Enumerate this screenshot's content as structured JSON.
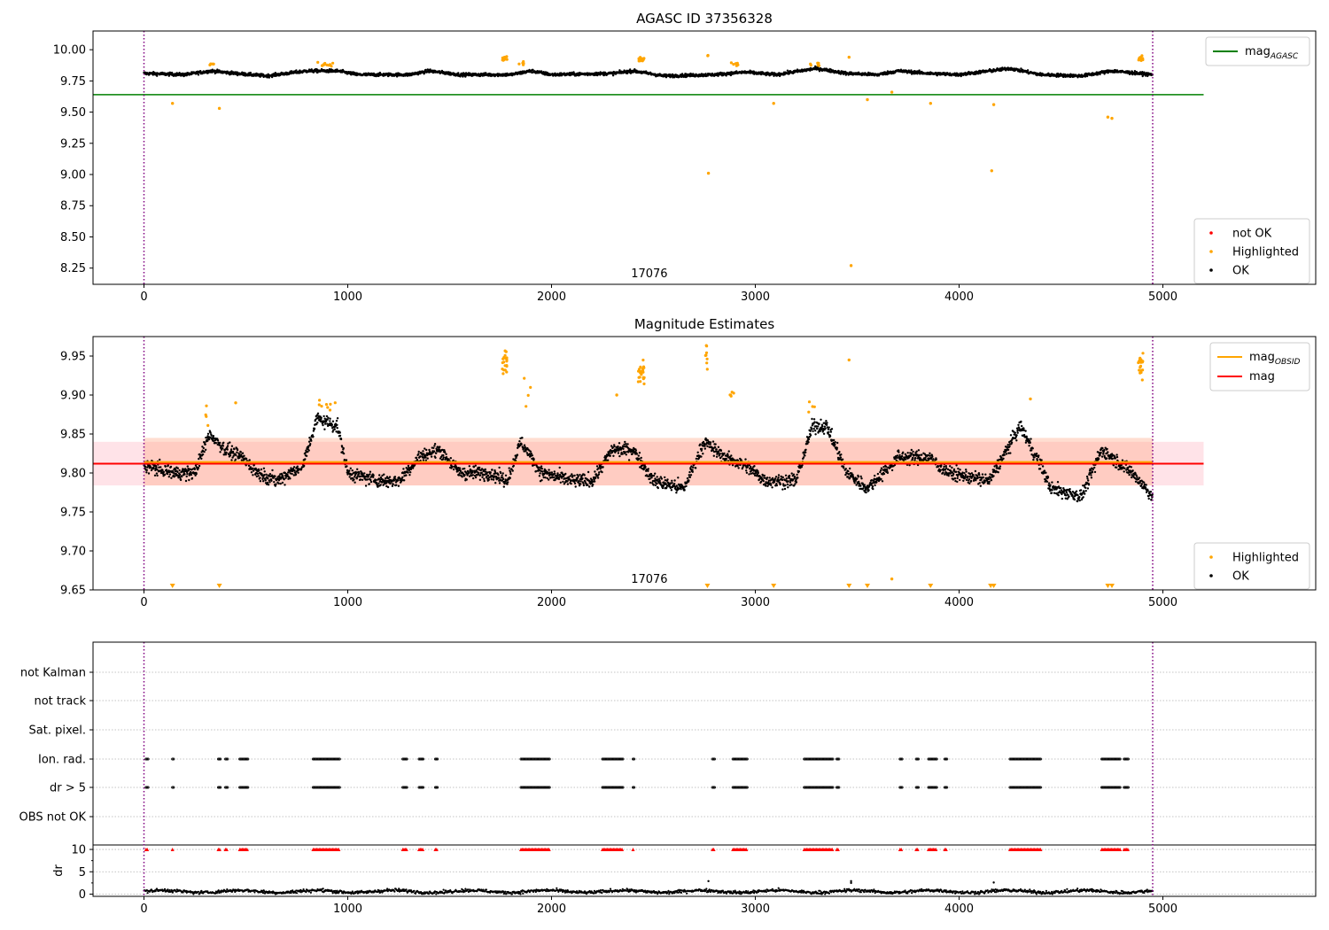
{
  "colors": {
    "ok": "#000000",
    "highlighted": "#ffa500",
    "not_ok": "#ff0000",
    "mag_agasc": "#008000",
    "mag": "#ff0000",
    "mag_obsid": "#ffa500",
    "vline": "#800080",
    "band_outer": "#ffc0cb",
    "band_inner": "#ffa07a"
  },
  "chart_data": [
    {
      "type": "scatter",
      "title": "AGASC ID 37356328",
      "xlim": [
        -250,
        5750
      ],
      "ylim": [
        8.12,
        10.15
      ],
      "x_ticks": [
        0,
        1000,
        2000,
        3000,
        4000,
        5000
      ],
      "y_ticks": [
        8.25,
        8.5,
        8.75,
        9.0,
        9.25,
        9.5,
        9.75,
        10.0
      ],
      "y_tick_labels": [
        "8.25",
        "8.50",
        "8.75",
        "9.00",
        "9.25",
        "9.50",
        "9.75",
        "10.00"
      ],
      "obsid_label": "17076",
      "obsid_label_x": 2480,
      "vlines": [
        0,
        4950
      ],
      "hlines": [
        {
          "name": "mag_AGASC",
          "y": 9.64,
          "x0": -250,
          "x1": 5200
        }
      ],
      "line_legend": [
        {
          "label": "mag",
          "sub": "AGASC",
          "color": "mag_agasc"
        }
      ],
      "point_legend": [
        {
          "label": "not OK",
          "color": "not_ok"
        },
        {
          "label": "Highlighted",
          "color": "highlighted"
        },
        {
          "label": "OK",
          "color": "ok"
        }
      ],
      "trend": {
        "x_start": 0,
        "x_end": 4950,
        "knots": [
          [
            0,
            9.81
          ],
          [
            200,
            9.8
          ],
          [
            330,
            9.83
          ],
          [
            450,
            9.81
          ],
          [
            600,
            9.79
          ],
          [
            800,
            9.83
          ],
          [
            950,
            9.83
          ],
          [
            1050,
            9.8
          ],
          [
            1300,
            9.8
          ],
          [
            1400,
            9.83
          ],
          [
            1550,
            9.8
          ],
          [
            1800,
            9.8
          ],
          [
            1900,
            9.83
          ],
          [
            2000,
            9.8
          ],
          [
            2300,
            9.81
          ],
          [
            2400,
            9.83
          ],
          [
            2550,
            9.79
          ],
          [
            2800,
            9.8
          ],
          [
            2950,
            9.82
          ],
          [
            3100,
            9.8
          ],
          [
            3300,
            9.85
          ],
          [
            3450,
            9.81
          ],
          [
            3600,
            9.8
          ],
          [
            3700,
            9.83
          ],
          [
            3850,
            9.81
          ],
          [
            4000,
            9.8
          ],
          [
            4250,
            9.85
          ],
          [
            4400,
            9.8
          ],
          [
            4600,
            9.79
          ],
          [
            4750,
            9.83
          ],
          [
            4950,
            9.8
          ]
        ],
        "jitter": 0.018
      },
      "highlighted_clusters": [
        [
          1770,
          9.93,
          12,
          15
        ],
        [
          2440,
          9.92,
          15,
          18
        ],
        [
          4890,
          9.93,
          12,
          15
        ],
        [
          2765,
          9.95,
          4,
          3
        ],
        [
          2900,
          9.89,
          20,
          6
        ],
        [
          330,
          9.88,
          15,
          5
        ],
        [
          890,
          9.88,
          40,
          12
        ],
        [
          1850,
          9.89,
          20,
          5
        ],
        [
          3300,
          9.88,
          30,
          6
        ]
      ],
      "highlighted_points": [
        [
          140,
          9.57
        ],
        [
          370,
          9.53
        ],
        [
          2770,
          9.01
        ],
        [
          3090,
          9.57
        ],
        [
          3470,
          8.27
        ],
        [
          3550,
          9.6
        ],
        [
          3670,
          9.66
        ],
        [
          3860,
          9.57
        ],
        [
          4160,
          9.03
        ],
        [
          4170,
          9.56
        ],
        [
          4730,
          9.46
        ],
        [
          4750,
          9.45
        ],
        [
          3460,
          9.94
        ]
      ],
      "not_ok_points": []
    },
    {
      "type": "scatter",
      "title": "Magnitude Estimates",
      "xlim": [
        -250,
        5750
      ],
      "ylim": [
        9.65,
        9.975
      ],
      "x_ticks": [
        0,
        1000,
        2000,
        3000,
        4000,
        5000
      ],
      "y_ticks": [
        9.65,
        9.7,
        9.75,
        9.8,
        9.85,
        9.9,
        9.95
      ],
      "y_tick_labels": [
        "9.65",
        "9.70",
        "9.75",
        "9.80",
        "9.85",
        "9.90",
        "9.95"
      ],
      "obsid_label": "17076",
      "obsid_label_x": 2480,
      "vlines": [
        0,
        4950
      ],
      "mag_line": {
        "y": 9.812,
        "x0": -250,
        "x1": 5200
      },
      "mag_obsid_line": {
        "y": 9.814,
        "x0": 0,
        "x1": 4950
      },
      "band_outer": {
        "y0": 9.784,
        "y1": 9.84,
        "x0": -250,
        "x1": 5200
      },
      "band_inner": {
        "y0": 9.784,
        "y1": 9.845,
        "x0": 0,
        "x1": 4950
      },
      "line_legend": [
        {
          "label": "mag",
          "sub": "OBSID",
          "color": "mag_obsid"
        },
        {
          "label": "mag",
          "sub": "",
          "color": "mag"
        }
      ],
      "point_legend": [
        {
          "label": "Highlighted",
          "color": "highlighted"
        },
        {
          "label": "OK",
          "color": "ok"
        }
      ],
      "trend": {
        "x_start": 0,
        "x_end": 4950,
        "knots": [
          [
            0,
            9.81
          ],
          [
            150,
            9.8
          ],
          [
            250,
            9.8
          ],
          [
            320,
            9.85
          ],
          [
            400,
            9.83
          ],
          [
            480,
            9.82
          ],
          [
            560,
            9.8
          ],
          [
            650,
            9.79
          ],
          [
            780,
            9.81
          ],
          [
            850,
            9.87
          ],
          [
            950,
            9.86
          ],
          [
            1000,
            9.8
          ],
          [
            1150,
            9.79
          ],
          [
            1250,
            9.79
          ],
          [
            1350,
            9.82
          ],
          [
            1450,
            9.83
          ],
          [
            1550,
            9.8
          ],
          [
            1700,
            9.8
          ],
          [
            1780,
            9.79
          ],
          [
            1850,
            9.84
          ],
          [
            1950,
            9.8
          ],
          [
            2100,
            9.79
          ],
          [
            2200,
            9.79
          ],
          [
            2300,
            9.83
          ],
          [
            2400,
            9.83
          ],
          [
            2500,
            9.79
          ],
          [
            2650,
            9.78
          ],
          [
            2750,
            9.84
          ],
          [
            2850,
            9.82
          ],
          [
            2950,
            9.81
          ],
          [
            3050,
            9.79
          ],
          [
            3200,
            9.79
          ],
          [
            3280,
            9.86
          ],
          [
            3350,
            9.86
          ],
          [
            3450,
            9.8
          ],
          [
            3550,
            9.78
          ],
          [
            3700,
            9.82
          ],
          [
            3850,
            9.82
          ],
          [
            3950,
            9.8
          ],
          [
            4150,
            9.79
          ],
          [
            4300,
            9.86
          ],
          [
            4400,
            9.81
          ],
          [
            4450,
            9.78
          ],
          [
            4600,
            9.77
          ],
          [
            4700,
            9.83
          ],
          [
            4850,
            9.8
          ],
          [
            4950,
            9.77
          ]
        ],
        "jitter": 0.012
      },
      "highlighted_clusters": [
        [
          1770,
          9.94,
          12,
          20
        ],
        [
          2440,
          9.93,
          15,
          25
        ],
        [
          4890,
          9.94,
          12,
          20
        ],
        [
          2760,
          9.95,
          5,
          8
        ],
        [
          2880,
          9.9,
          15,
          5
        ],
        [
          310,
          9.88,
          10,
          4
        ],
        [
          900,
          9.89,
          40,
          8
        ],
        [
          1880,
          9.9,
          20,
          4
        ],
        [
          3280,
          9.89,
          25,
          4
        ]
      ],
      "highlighted_points": [
        [
          450,
          9.89
        ],
        [
          2320,
          9.9
        ],
        [
          3460,
          9.945
        ],
        [
          3670,
          9.664
        ],
        [
          4350,
          9.895
        ]
      ],
      "floor_markers": [
        140,
        370,
        2765,
        3090,
        3460,
        3550,
        3860,
        4155,
        4170,
        4730,
        4750
      ]
    },
    {
      "type": "scatter",
      "title": "",
      "xlim": [
        -250,
        5750
      ],
      "x_ticks": [
        0,
        1000,
        2000,
        3000,
        4000,
        5000
      ],
      "vlines": [
        0,
        4950
      ],
      "flag_rows": [
        "not Kalman",
        "not track",
        "Sat. pixel.",
        "Ion. rad.",
        "dr > 5",
        "OBS not OK"
      ],
      "flag_segments": [
        [
          10,
          20
        ],
        [
          140,
          145
        ],
        [
          365,
          375
        ],
        [
          400,
          410
        ],
        [
          470,
          510
        ],
        [
          830,
          960
        ],
        [
          1270,
          1290
        ],
        [
          1350,
          1370
        ],
        [
          1430,
          1440
        ],
        [
          1850,
          1990
        ],
        [
          2250,
          2350
        ],
        [
          2400,
          2405
        ],
        [
          2790,
          2800
        ],
        [
          2890,
          2960
        ],
        [
          3240,
          3380
        ],
        [
          3400,
          3410
        ],
        [
          3710,
          3720
        ],
        [
          3790,
          3800
        ],
        [
          3850,
          3890
        ],
        [
          3930,
          3940
        ],
        [
          4250,
          4400
        ],
        [
          4700,
          4790
        ],
        [
          4810,
          4830
        ]
      ],
      "dr_panel": {
        "ylabel": "dr",
        "ylim": [
          -0.5,
          11
        ],
        "y_ticks": [
          0,
          5,
          10
        ],
        "y_tick_labels": [
          "0",
          "5",
          "10"
        ],
        "points_max": 3.0
      }
    }
  ]
}
